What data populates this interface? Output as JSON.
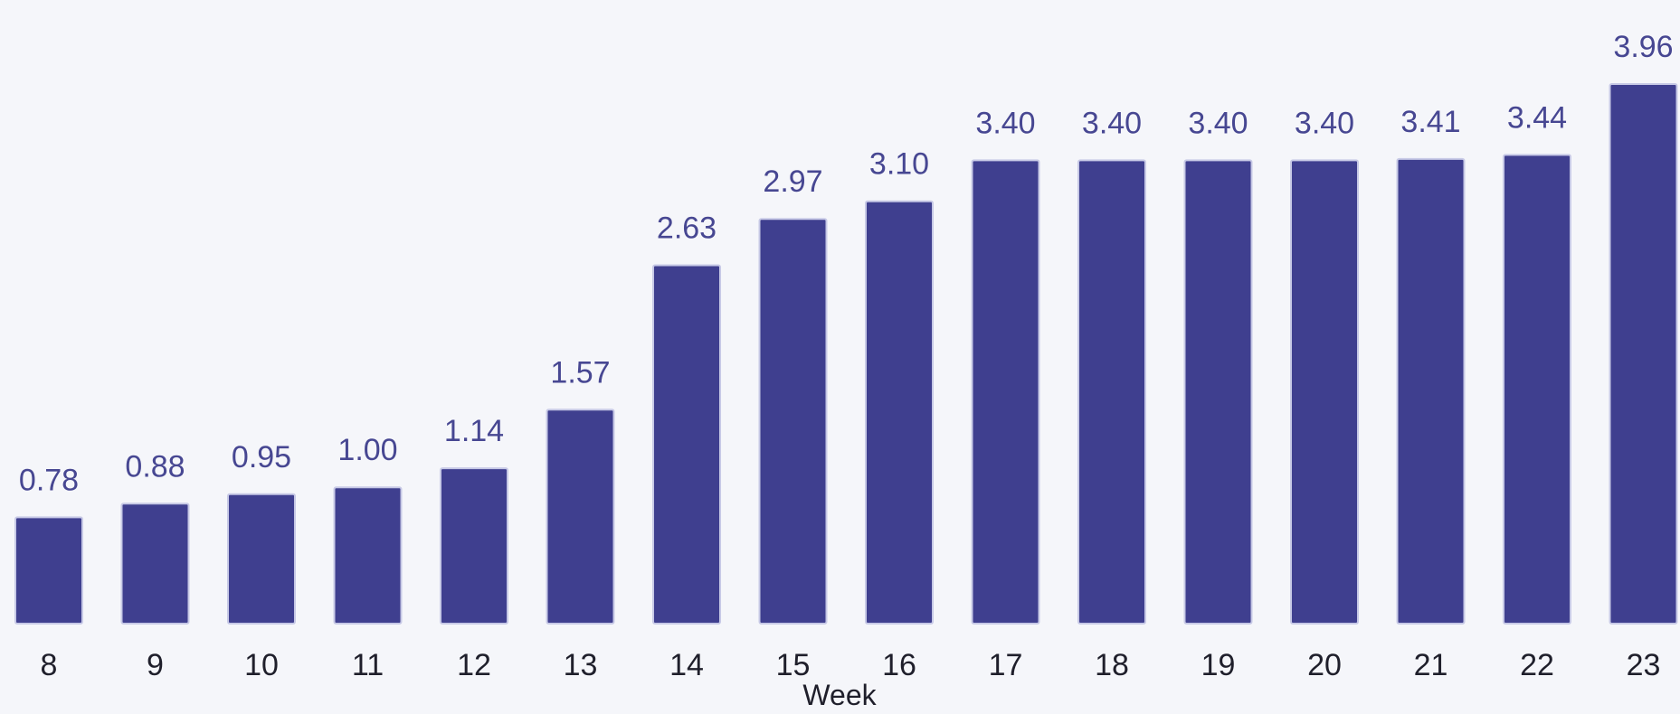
{
  "chart_data": {
    "type": "bar",
    "categories": [
      "8",
      "9",
      "10",
      "11",
      "12",
      "13",
      "14",
      "15",
      "16",
      "17",
      "18",
      "19",
      "20",
      "21",
      "22",
      "23"
    ],
    "values": [
      0.78,
      0.88,
      0.95,
      1.0,
      1.14,
      1.57,
      2.63,
      2.97,
      3.1,
      3.4,
      3.4,
      3.4,
      3.4,
      3.41,
      3.44,
      3.96
    ],
    "data_labels": [
      "0.78",
      "0.88",
      "0.95",
      "1.00",
      "1.14",
      "1.57",
      "2.63",
      "2.97",
      "3.10",
      "3.40",
      "3.40",
      "3.40",
      "3.40",
      "3.41",
      "3.44",
      "3.96"
    ],
    "xlabel": "Week",
    "ylabel": "",
    "ylim": [
      0,
      3.96
    ],
    "grid": false,
    "colors": {
      "bar": "#3f3f8f",
      "bar_outline": "#c7c9e6",
      "value_label": "#474792",
      "tick_label": "#1f1f2b",
      "background": "#f5f6fa"
    }
  }
}
